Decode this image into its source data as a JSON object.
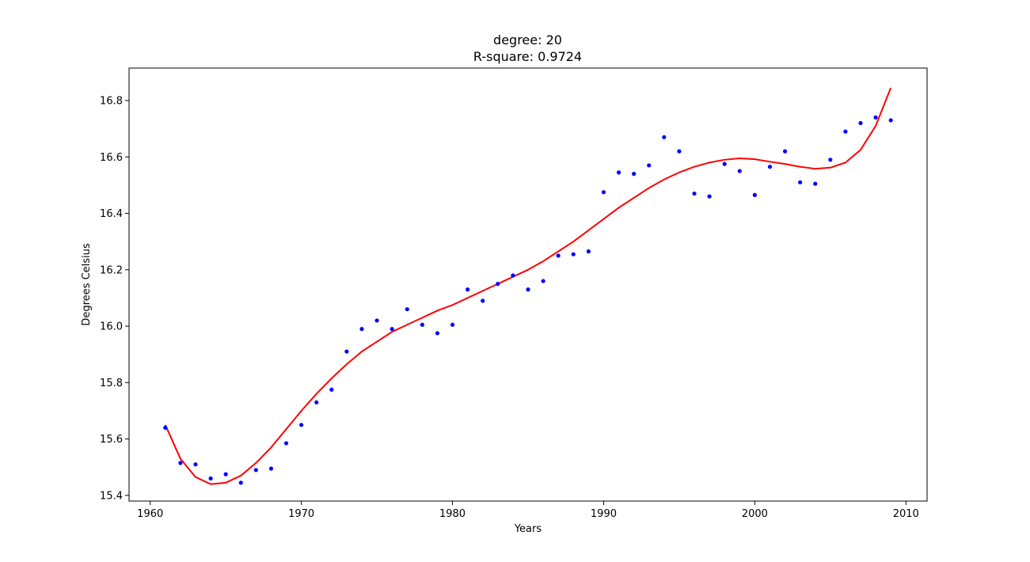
{
  "chart_data": {
    "type": "scatter",
    "title_lines": [
      "degree: 20",
      "R-square: 0.9724"
    ],
    "xlabel": "Years",
    "ylabel": "Degrees Celsius",
    "xlim": [
      1958.6,
      2011.4
    ],
    "ylim": [
      15.38,
      16.915
    ],
    "xticks": [
      1960,
      1970,
      1980,
      1990,
      2000,
      2010
    ],
    "yticks": [
      15.4,
      15.6,
      15.8,
      16.0,
      16.2,
      16.4,
      16.6,
      16.8
    ],
    "grid": false,
    "series": [
      {
        "kind": "points",
        "color": "#0000ff",
        "x": [
          1961,
          1962,
          1963,
          1964,
          1965,
          1966,
          1967,
          1968,
          1969,
          1970,
          1971,
          1972,
          1973,
          1974,
          1975,
          1976,
          1977,
          1978,
          1979,
          1980,
          1981,
          1982,
          1983,
          1984,
          1985,
          1986,
          1987,
          1988,
          1989,
          1990,
          1991,
          1992,
          1993,
          1994,
          1995,
          1996,
          1997,
          1998,
          1999,
          2000,
          2001,
          2002,
          2003,
          2004,
          2005,
          2006,
          2007,
          2008,
          2009
        ],
        "y": [
          15.64,
          15.515,
          15.51,
          15.46,
          15.475,
          15.445,
          15.49,
          15.495,
          15.585,
          15.65,
          15.73,
          15.775,
          15.91,
          15.99,
          16.02,
          15.99,
          16.06,
          16.005,
          15.975,
          16.005,
          16.13,
          16.09,
          16.15,
          16.18,
          16.13,
          16.16,
          16.25,
          16.255,
          16.265,
          16.475,
          16.545,
          16.54,
          16.57,
          16.67,
          16.62,
          16.47,
          16.46,
          16.575,
          16.55,
          16.465,
          16.565,
          16.62,
          16.51,
          16.505,
          16.59,
          16.69,
          16.72,
          16.74,
          16.73
        ]
      },
      {
        "kind": "fit-line",
        "color": "#ff0000",
        "x": [
          1961,
          1962,
          1963,
          1964,
          1965,
          1966,
          1967,
          1968,
          1969,
          1970,
          1971,
          1972,
          1973,
          1974,
          1975,
          1976,
          1977,
          1978,
          1979,
          1980,
          1981,
          1982,
          1983,
          1984,
          1985,
          1986,
          1987,
          1988,
          1989,
          1990,
          1991,
          1992,
          1993,
          1994,
          1995,
          1996,
          1997,
          1998,
          1999,
          2000,
          2001,
          2002,
          2003,
          2004,
          2005,
          2006,
          2007,
          2008,
          2009
        ],
        "y": [
          15.65,
          15.53,
          15.465,
          15.44,
          15.445,
          15.47,
          15.515,
          15.57,
          15.635,
          15.7,
          15.76,
          15.815,
          15.865,
          15.91,
          15.945,
          15.98,
          16.005,
          16.03,
          16.055,
          16.075,
          16.1,
          16.125,
          16.15,
          16.175,
          16.2,
          16.23,
          16.265,
          16.3,
          16.34,
          16.38,
          16.42,
          16.455,
          16.49,
          16.52,
          16.545,
          16.565,
          16.58,
          16.59,
          16.595,
          16.592,
          16.583,
          16.575,
          16.565,
          16.558,
          16.562,
          16.58,
          16.625,
          16.71,
          16.845
        ]
      }
    ]
  }
}
